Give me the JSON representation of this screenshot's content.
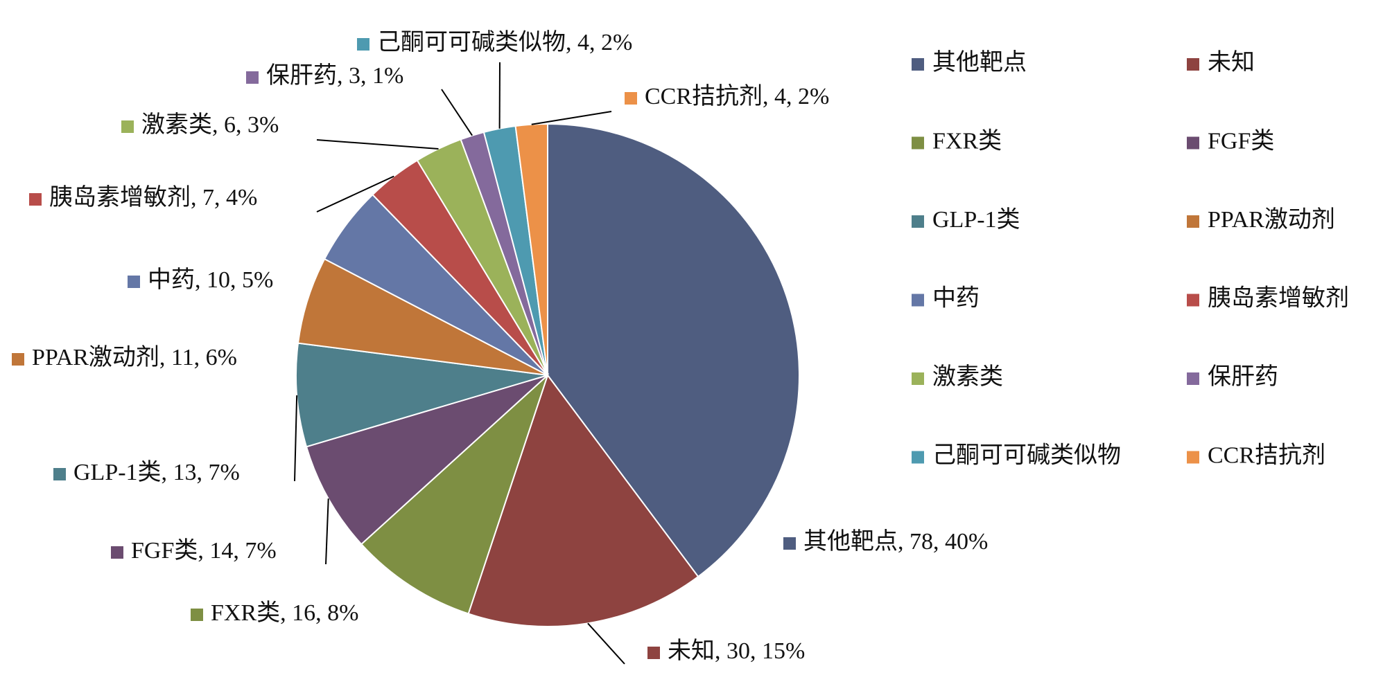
{
  "chart_data": {
    "type": "pie",
    "categories": [
      "其他靶点",
      "未知",
      "FXR类",
      "FGF类",
      "GLP-1类",
      "PPAR激动剂",
      "中药",
      "胰岛素增敏剂",
      "激素类",
      "保肝药",
      "己酮可可碱类似物",
      "CCR拮抗剂"
    ],
    "values": [
      78,
      30,
      16,
      14,
      13,
      11,
      10,
      7,
      6,
      3,
      4,
      4
    ],
    "data_labels": [
      "其他靶点, 78, 40%",
      "未知, 30, 15%",
      "FXR类, 16, 8%",
      "FGF类, 14, 7%",
      "GLP-1类, 13, 7%",
      "PPAR激动剂, 11, 6%",
      "中药, 10, 5%",
      "胰岛素增敏剂, 7, 4%",
      "激素类, 6, 3%",
      "保肝药, 3, 1%",
      "己酮可可碱类似物, 4, 2%",
      "CCR拮抗剂, 4, 2%"
    ],
    "colors": [
      "#4f5d80",
      "#8e4340",
      "#7e8f43",
      "#6b4c70",
      "#4e7f8b",
      "#c07639",
      "#6477a6",
      "#b84d4a",
      "#9bb25a",
      "#846a9c",
      "#4e9ab0",
      "#ec9148"
    ],
    "legend": "right"
  }
}
